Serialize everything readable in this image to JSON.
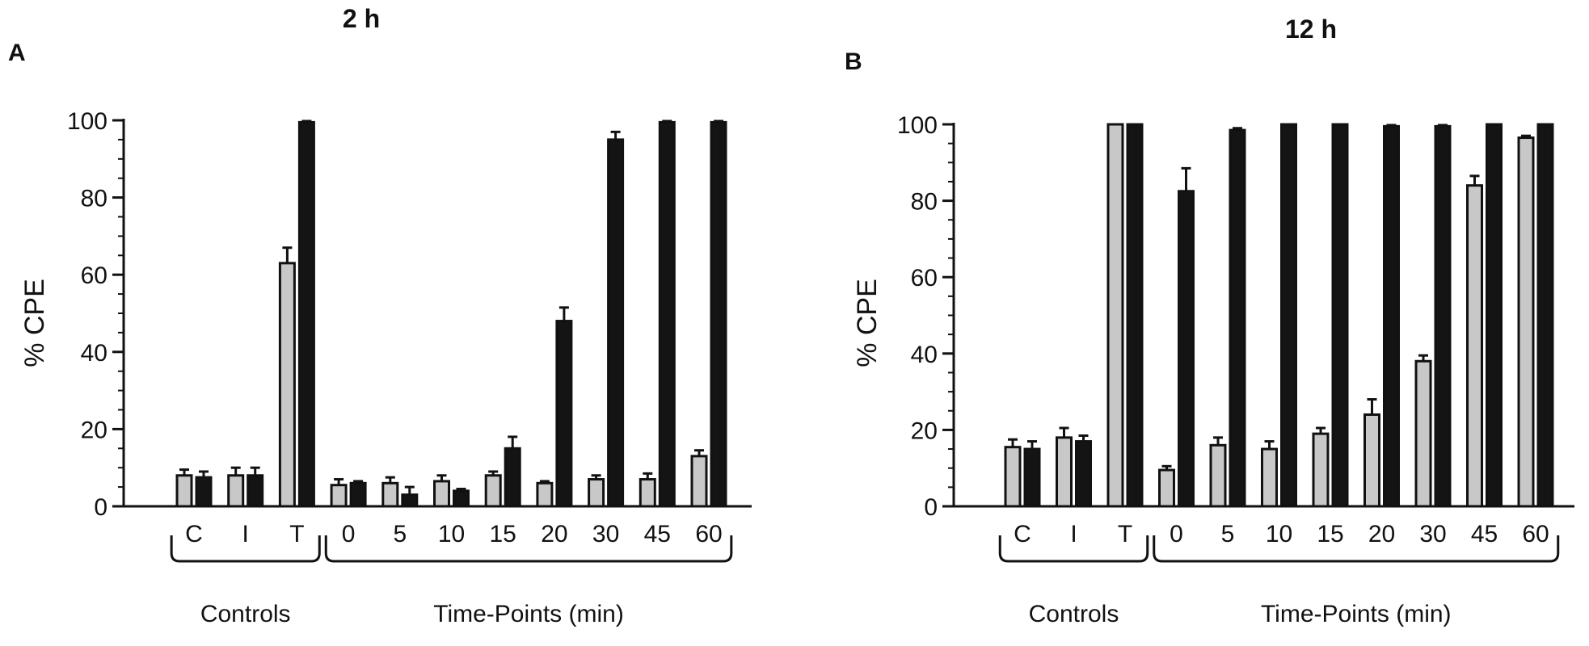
{
  "chart_data": [
    {
      "type": "bar",
      "panel_letter": "A",
      "title": "2 h",
      "ylabel": "% CPE",
      "ylim": [
        0,
        100
      ],
      "yticks": [
        0,
        20,
        40,
        60,
        80,
        100
      ],
      "categories": [
        "C",
        "I",
        "T",
        "0",
        "5",
        "10",
        "15",
        "20",
        "30",
        "45",
        "60"
      ],
      "groups": [
        {
          "label": "Controls",
          "categories": [
            "C",
            "I",
            "T"
          ]
        },
        {
          "label": "Time-Points (min)",
          "categories": [
            "0",
            "5",
            "10",
            "15",
            "20",
            "30",
            "45",
            "60"
          ]
        }
      ],
      "series": [
        {
          "color": "#c8c8c8",
          "values": [
            8,
            8,
            63,
            5.5,
            6,
            6.5,
            8,
            6,
            7,
            7,
            13
          ],
          "errors": [
            1.5,
            2,
            4,
            1.5,
            1.5,
            1.5,
            1,
            0.5,
            1,
            1.5,
            1.5
          ]
        },
        {
          "color": "#141414",
          "values": [
            7.5,
            8,
            99.5,
            6,
            3,
            4,
            15,
            48,
            95,
            99.5,
            99.5
          ],
          "errors": [
            1.5,
            2,
            0.3,
            0.5,
            2,
            0.5,
            3,
            3.5,
            2,
            0.3,
            0.3
          ]
        }
      ],
      "grid": false,
      "legend": "none"
    },
    {
      "type": "bar",
      "panel_letter": "B",
      "title": "12 h",
      "ylabel": "% CPE",
      "ylim": [
        0,
        100
      ],
      "yticks": [
        0,
        20,
        40,
        60,
        80,
        100
      ],
      "categories": [
        "C",
        "I",
        "T",
        "0",
        "5",
        "10",
        "15",
        "20",
        "30",
        "45",
        "60"
      ],
      "groups": [
        {
          "label": "Controls",
          "categories": [
            "C",
            "I",
            "T"
          ]
        },
        {
          "label": "Time-Points (min)",
          "categories": [
            "0",
            "5",
            "10",
            "15",
            "20",
            "30",
            "45",
            "60"
          ]
        }
      ],
      "series": [
        {
          "color": "#c8c8c8",
          "values": [
            15.5,
            18,
            100,
            9.5,
            16,
            15,
            19,
            24,
            38,
            84,
            96.5
          ],
          "errors": [
            2,
            2.5,
            0,
            1,
            2,
            2,
            1.5,
            4,
            1.5,
            2.5,
            0.5
          ]
        },
        {
          "color": "#141414",
          "values": [
            15,
            17,
            100,
            82.5,
            98.5,
            100,
            100,
            99.5,
            99.5,
            100,
            100
          ],
          "errors": [
            2,
            1.5,
            0,
            6,
            0.5,
            0,
            0,
            0.3,
            0.3,
            0,
            0
          ]
        }
      ],
      "grid": false,
      "legend": "none"
    }
  ]
}
